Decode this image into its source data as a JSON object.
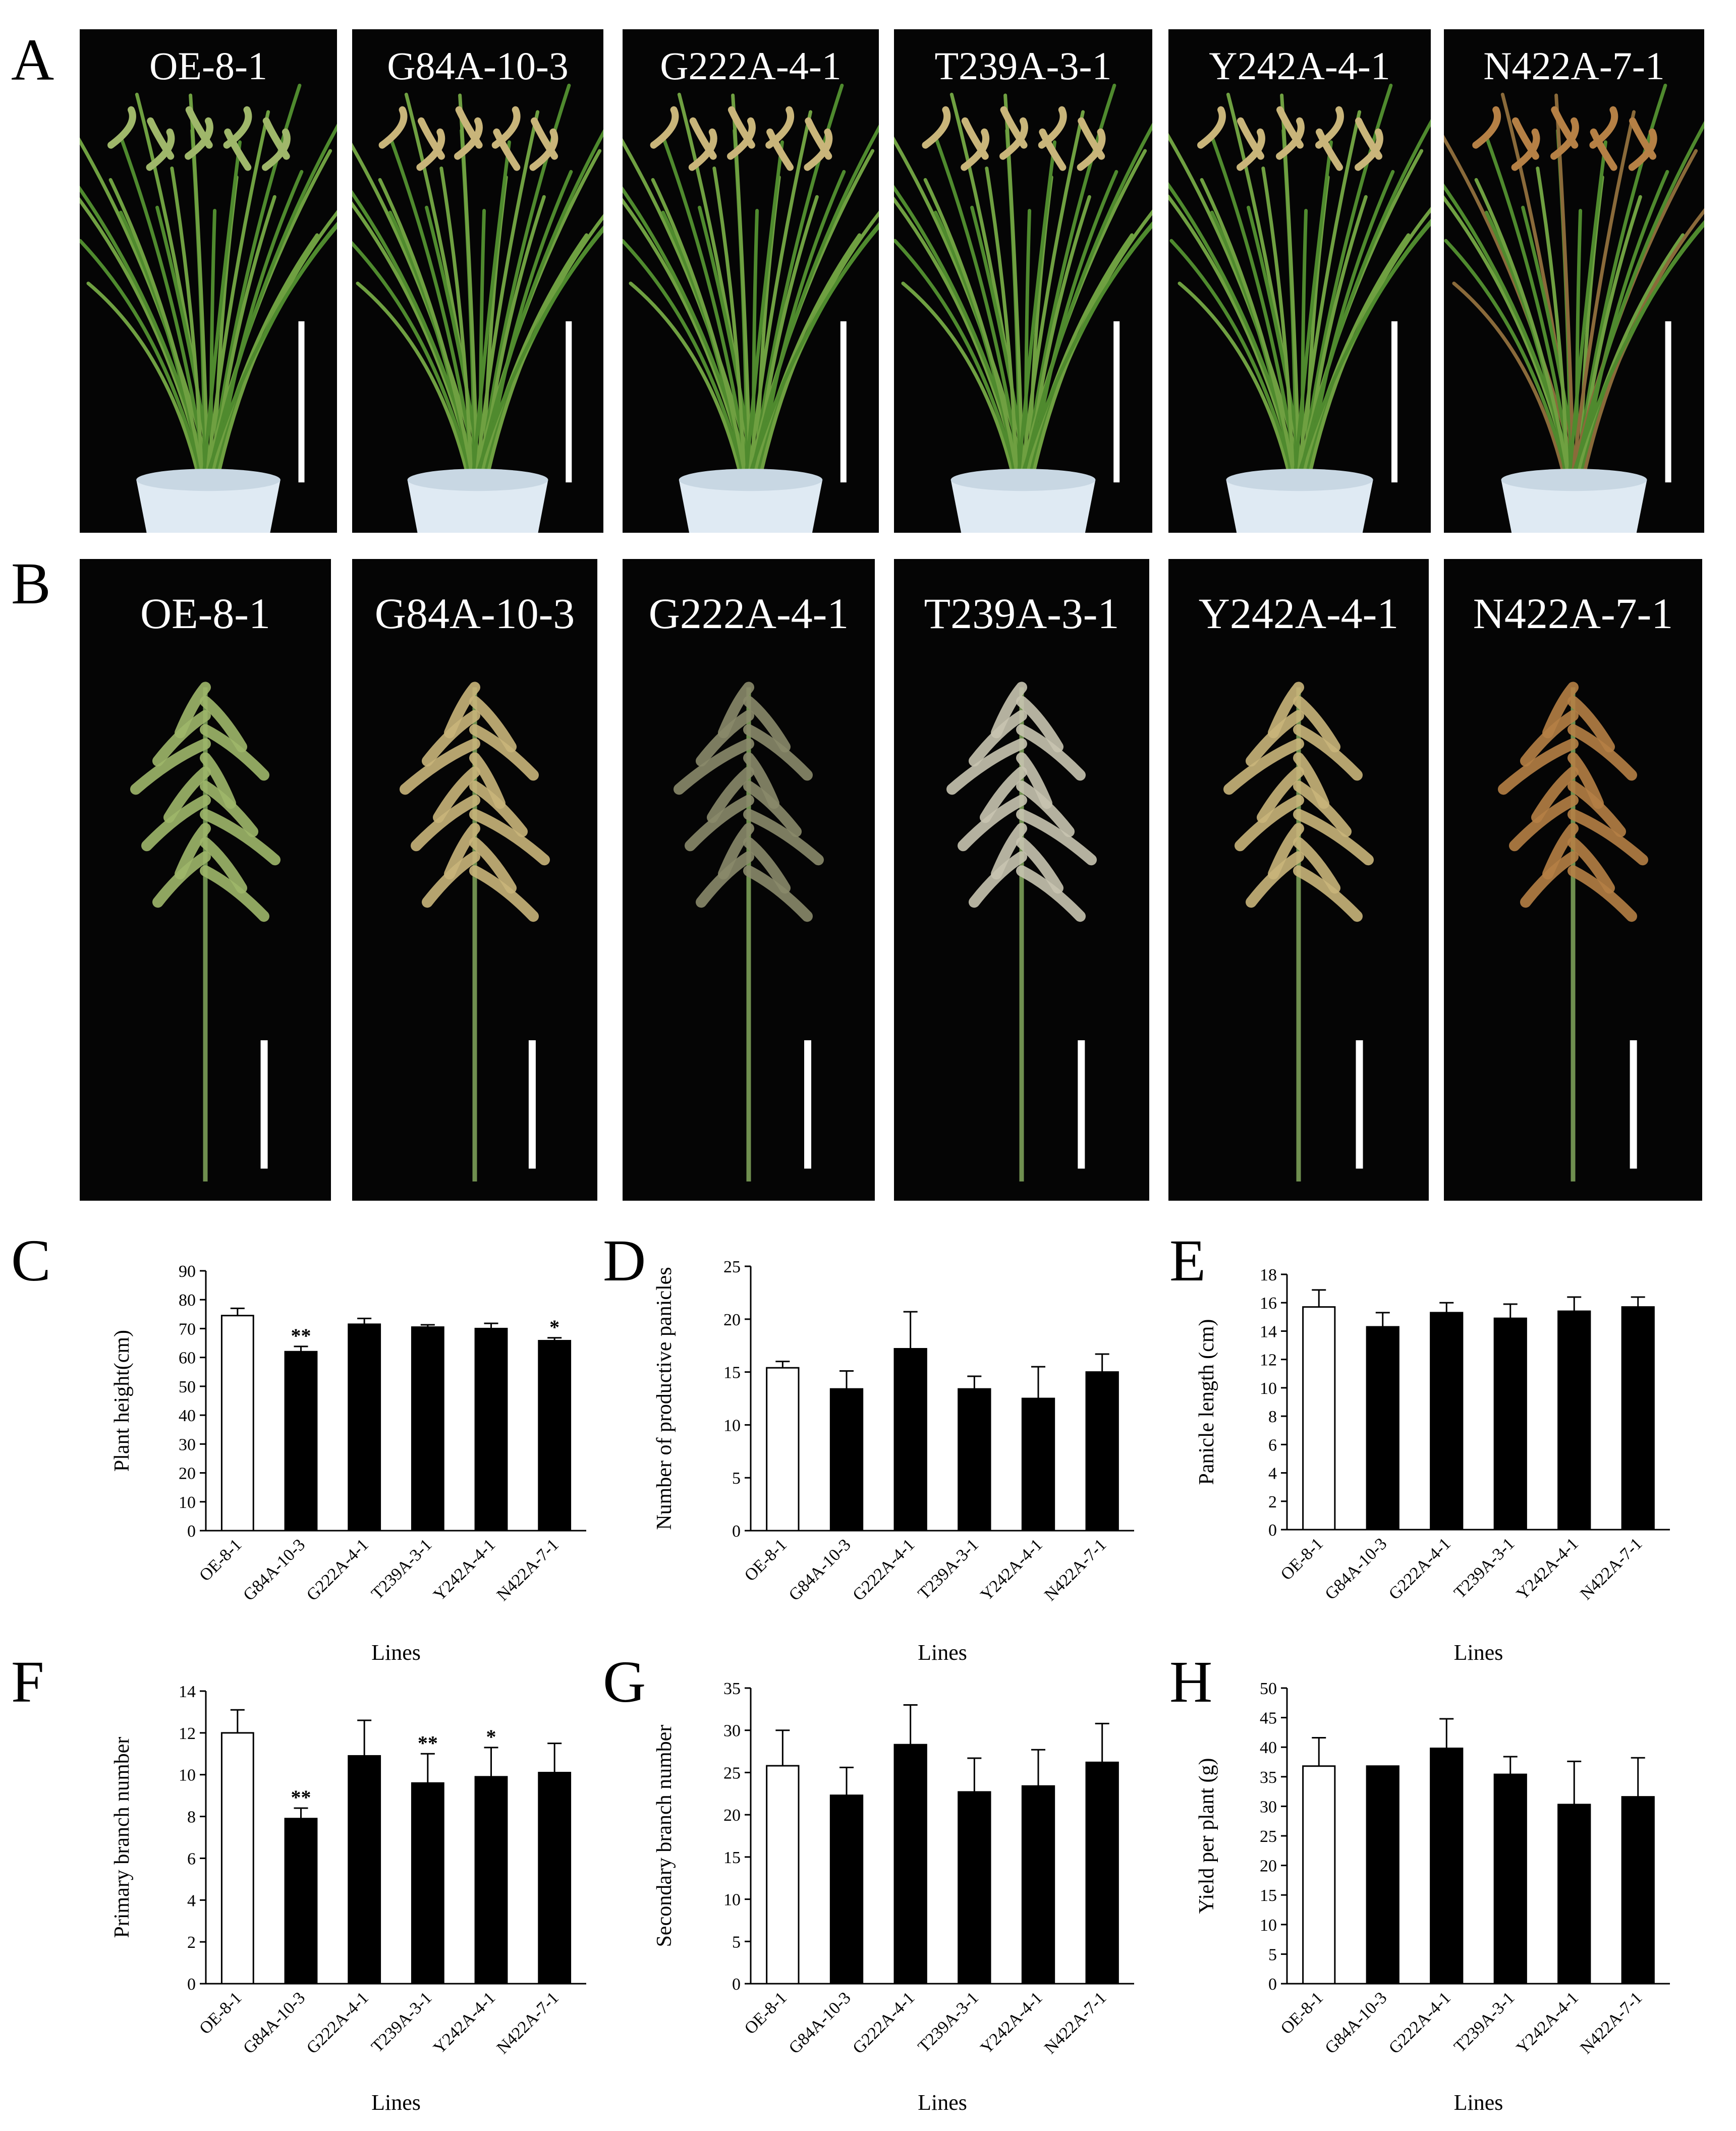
{
  "panel_letters": {
    "a": "A",
    "b": "B",
    "c": "C",
    "d": "D",
    "e": "E",
    "f": "F",
    "g": "G",
    "h": "H"
  },
  "row_a": {
    "labels": [
      "OE-8-1",
      "G84A-10-3",
      "G222A-4-1",
      "T239A-3-1",
      "Y242A-4-1",
      "N422A-7-1"
    ]
  },
  "row_b": {
    "labels": [
      "OE-8-1",
      "G84A-10-3",
      "G222A-4-1",
      "T239A-3-1",
      "Y242A-4-1",
      "N422A-7-1"
    ]
  },
  "colors": {
    "control_bar": "#ffffff",
    "mutant_bar": "#000000",
    "leaf": "#4f8a2e",
    "panicle_green": "#9fb76a",
    "panicle_tan": "#c9b57a",
    "panicle_red": "#b58045",
    "pot": "#dfeaf3"
  },
  "chart_data": [
    {
      "id": "C",
      "type": "bar",
      "categories": [
        "OE-8-1",
        "G84A-10-3",
        "G222A-4-1",
        "T239A-3-1",
        "Y242A-4-1",
        "N422A-7-1"
      ],
      "values": [
        74.5,
        62,
        71.5,
        70.5,
        70,
        65.8
      ],
      "errors": [
        2.5,
        1.8,
        2,
        0.8,
        1.8,
        1
      ],
      "significance": [
        "",
        "**",
        "",
        "",
        "",
        "*"
      ],
      "ylabel": "Plant height(cm)",
      "xlabel": "Lines",
      "ylim": [
        0,
        90
      ],
      "yticks": [
        0,
        10,
        20,
        30,
        40,
        50,
        60,
        70,
        80,
        90
      ]
    },
    {
      "id": "D",
      "type": "bar",
      "categories": [
        "OE-8-1",
        "G84A-10-3",
        "G222A-4-1",
        "T239A-3-1",
        "Y242A-4-1",
        "N422A-7-1"
      ],
      "values": [
        15.4,
        13.4,
        17.2,
        13.4,
        12.5,
        15
      ],
      "errors": [
        0.6,
        1.7,
        3.5,
        1.2,
        3,
        1.7
      ],
      "significance": [
        "",
        "",
        "",
        "",
        "",
        ""
      ],
      "ylabel": "Number of productive panicles",
      "xlabel": "Lines",
      "ylim": [
        0,
        25
      ],
      "yticks": [
        0,
        5,
        10,
        15,
        20,
        25
      ]
    },
    {
      "id": "E",
      "type": "bar",
      "categories": [
        "OE-8-1",
        "G84A-10-3",
        "G222A-4-1",
        "T239A-3-1",
        "Y242A-4-1",
        "N422A-7-1"
      ],
      "values": [
        15.7,
        14.3,
        15.3,
        14.9,
        15.4,
        15.7
      ],
      "errors": [
        1.2,
        1,
        0.7,
        1,
        1,
        0.7
      ],
      "significance": [
        "",
        "",
        "",
        "",
        "",
        ""
      ],
      "ylabel": "Panicle length (cm)",
      "xlabel": "Lines",
      "ylim": [
        0,
        18
      ],
      "yticks": [
        0,
        2,
        4,
        6,
        8,
        10,
        12,
        14,
        16,
        18
      ]
    },
    {
      "id": "F",
      "type": "bar",
      "categories": [
        "OE-8-1",
        "G84A-10-3",
        "G222A-4-1",
        "T239A-3-1",
        "Y242A-4-1",
        "N422A-7-1"
      ],
      "values": [
        12,
        7.9,
        10.9,
        9.6,
        9.9,
        10.1
      ],
      "errors": [
        1.1,
        0.5,
        1.7,
        1.4,
        1.4,
        1.4
      ],
      "significance": [
        "",
        "**",
        "",
        "**",
        "*",
        ""
      ],
      "ylabel": "Primary branch number",
      "xlabel": "Lines",
      "ylim": [
        0,
        14
      ],
      "yticks": [
        0,
        2,
        4,
        6,
        8,
        10,
        12,
        14
      ]
    },
    {
      "id": "G",
      "type": "bar",
      "categories": [
        "OE-8-1",
        "G84A-10-3",
        "G222A-4-1",
        "T239A-3-1",
        "Y242A-4-1",
        "N422A-7-1"
      ],
      "values": [
        25.8,
        22.3,
        28.3,
        22.7,
        23.4,
        26.2
      ],
      "errors": [
        4.2,
        3.3,
        4.7,
        4,
        4.3,
        4.6
      ],
      "significance": [
        "",
        "",
        "",
        "",
        "",
        ""
      ],
      "ylabel": "Secondary branch number",
      "xlabel": "Lines",
      "ylim": [
        0,
        35
      ],
      "yticks": [
        0,
        5,
        10,
        15,
        20,
        25,
        30,
        35
      ]
    },
    {
      "id": "H",
      "type": "bar",
      "categories": [
        "OE-8-1",
        "G84A-10-3",
        "G222A-4-1",
        "T239A-3-1",
        "Y242A-4-1",
        "N422A-7-1"
      ],
      "values": [
        36.8,
        36.8,
        39.8,
        35.4,
        30.3,
        31.6
      ],
      "errors": [
        4.8,
        0,
        5,
        3,
        7.3,
        6.6
      ],
      "significance": [
        "",
        "",
        "",
        "",
        "",
        ""
      ],
      "ylabel": "Yield per plant (g)",
      "xlabel": "Lines",
      "ylim": [
        0,
        50
      ],
      "yticks": [
        0,
        5,
        10,
        15,
        20,
        25,
        30,
        35,
        40,
        45,
        50
      ]
    }
  ]
}
